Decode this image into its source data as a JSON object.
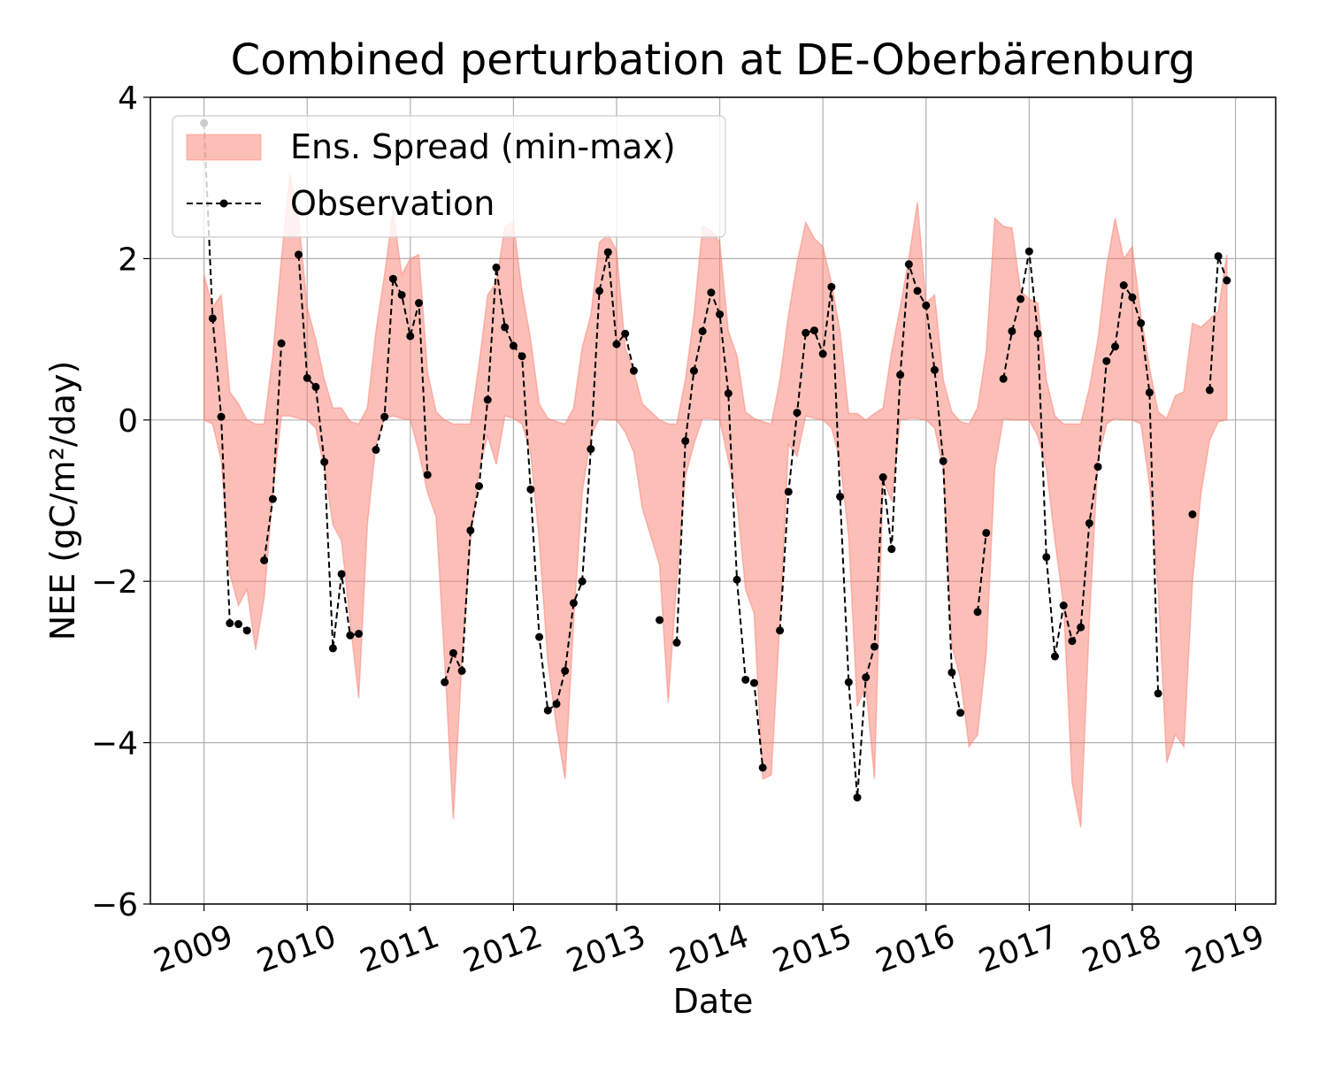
{
  "chart_data": {
    "type": "band-line",
    "title": "Combined perturbation at DE-Oberbärenburg",
    "xlabel": "Date",
    "ylabel": "NEE  (gC/m²/day)",
    "x": [
      "2009-01",
      "2009-02",
      "2009-03",
      "2009-04",
      "2009-05",
      "2009-06",
      "2009-07",
      "2009-08",
      "2009-09",
      "2009-10",
      "2009-11",
      "2009-12",
      "2010-01",
      "2010-02",
      "2010-03",
      "2010-04",
      "2010-05",
      "2010-06",
      "2010-07",
      "2010-08",
      "2010-09",
      "2010-10",
      "2010-11",
      "2010-12",
      "2011-01",
      "2011-02",
      "2011-03",
      "2011-04",
      "2011-05",
      "2011-06",
      "2011-07",
      "2011-08",
      "2011-09",
      "2011-10",
      "2011-11",
      "2011-12",
      "2012-01",
      "2012-02",
      "2012-03",
      "2012-04",
      "2012-05",
      "2012-06",
      "2012-07",
      "2012-08",
      "2012-09",
      "2012-10",
      "2012-11",
      "2012-12",
      "2013-01",
      "2013-02",
      "2013-03",
      "2013-04",
      "2013-05",
      "2013-06",
      "2013-07",
      "2013-08",
      "2013-09",
      "2013-10",
      "2013-11",
      "2013-12",
      "2014-01",
      "2014-02",
      "2014-03",
      "2014-04",
      "2014-05",
      "2014-06",
      "2014-07",
      "2014-08",
      "2014-09",
      "2014-10",
      "2014-11",
      "2014-12",
      "2015-01",
      "2015-02",
      "2015-03",
      "2015-04",
      "2015-05",
      "2015-06",
      "2015-07",
      "2015-08",
      "2015-09",
      "2015-10",
      "2015-11",
      "2015-12",
      "2016-01",
      "2016-02",
      "2016-03",
      "2016-04",
      "2016-05",
      "2016-06",
      "2016-07",
      "2016-08",
      "2016-09",
      "2016-10",
      "2016-11",
      "2016-12",
      "2017-01",
      "2017-02",
      "2017-03",
      "2017-04",
      "2017-05",
      "2017-06",
      "2017-07",
      "2017-08",
      "2017-09",
      "2017-10",
      "2017-11",
      "2017-12",
      "2018-01",
      "2018-02",
      "2018-03",
      "2018-04",
      "2018-05",
      "2018-06",
      "2018-07",
      "2018-08",
      "2018-09",
      "2018-10",
      "2018-11",
      "2018-12"
    ],
    "series": [
      {
        "name": "Ens. Spread (min-max)",
        "color": "#fa8072",
        "opacity": 0.5,
        "upper": [
          1.8,
          1.4,
          1.55,
          0.35,
          0.2,
          0,
          -0.05,
          -0.05,
          0.8,
          2.0,
          3.05,
          2.5,
          1.4,
          1.0,
          0.5,
          0.15,
          0.15,
          -0.02,
          -0.05,
          0.15,
          1.1,
          1.8,
          2.6,
          1.8,
          2.0,
          2.05,
          0.6,
          0.1,
          0,
          -0.05,
          -0.05,
          -0.05,
          0.7,
          1.55,
          1.7,
          2.4,
          2.45,
          1.6,
          1.0,
          0.2,
          0.02,
          -0.02,
          -0.05,
          0.15,
          0.9,
          1.3,
          2.2,
          2.3,
          2.1,
          0.9,
          0.6,
          0.2,
          0.1,
          0,
          -0.05,
          -0.05,
          0.5,
          1.3,
          2.4,
          2.35,
          2.2,
          1.1,
          0.8,
          0.1,
          0.02,
          -0.02,
          -0.05,
          0.5,
          1.3,
          1.95,
          2.45,
          2.25,
          2.15,
          1.7,
          1.1,
          0.08,
          0.08,
          0,
          0.08,
          0.15,
          0.85,
          1.4,
          2.0,
          2.7,
          1.45,
          1.55,
          0.5,
          0.1,
          -0.02,
          -0.05,
          0.15,
          0.85,
          2.5,
          2.4,
          2.38,
          1.6,
          1.5,
          1.45,
          0.5,
          0.05,
          -0.05,
          -0.05,
          -0.05,
          0.4,
          1.0,
          1.9,
          2.5,
          2.0,
          2.15,
          1.3,
          0.65,
          0.1,
          0.02,
          0.3,
          0.35,
          1.2,
          1.15,
          1.25,
          1.35,
          2.05
        ],
        "lower": [
          0,
          -0.05,
          -0.5,
          -1.9,
          -2.3,
          -2.1,
          -2.85,
          -2.2,
          -0.9,
          0.05,
          0.05,
          0.02,
          0,
          -0.1,
          -0.6,
          -1.3,
          -1.5,
          -2.5,
          -3.45,
          -1.3,
          -0.3,
          0.02,
          0.05,
          0.02,
          0,
          -0.4,
          -0.9,
          -1.2,
          -3.0,
          -4.95,
          -3.0,
          -1.5,
          -0.6,
          -0.2,
          -0.55,
          0.05,
          0.02,
          -0.05,
          -0.4,
          -1.5,
          -3.0,
          -3.8,
          -4.45,
          -2.5,
          -0.9,
          -0.2,
          0.02,
          0,
          0,
          -0.15,
          -0.4,
          -1.1,
          -1.45,
          -1.8,
          -3.5,
          -2.0,
          -0.7,
          -0.3,
          0.02,
          0.02,
          0,
          -0.5,
          -1.0,
          -2.1,
          -2.4,
          -4.45,
          -4.4,
          -2.5,
          -0.3,
          -0.45,
          0.05,
          0.02,
          0,
          -0.1,
          -0.5,
          -1.45,
          -3.55,
          -3.3,
          -4.45,
          -0.75,
          -1.0,
          0,
          0.02,
          0.02,
          0,
          -0.1,
          -0.6,
          -2.8,
          -3.2,
          -4.05,
          -3.9,
          -2.9,
          -0.6,
          0.02,
          0,
          0,
          0,
          -0.2,
          -0.6,
          -1.5,
          -2.3,
          -4.5,
          -5.05,
          -2.5,
          -0.5,
          -0.05,
          0.02,
          0,
          0,
          -0.05,
          -0.8,
          -2.1,
          -4.25,
          -3.9,
          -4.05,
          -2.0,
          -0.9,
          -0.25,
          -0.02,
          0
        ]
      },
      {
        "name": "Observation",
        "color": "#000000",
        "values": [
          3.68,
          1.26,
          0.04,
          -2.52,
          -2.53,
          -2.61,
          null,
          -1.74,
          -0.98,
          0.95,
          null,
          2.05,
          0.52,
          0.41,
          -0.52,
          -2.83,
          -1.91,
          -2.67,
          -2.65,
          null,
          -0.37,
          0.04,
          1.75,
          1.55,
          1.04,
          1.45,
          -0.68,
          null,
          -3.25,
          -2.89,
          -3.11,
          -1.37,
          -0.82,
          0.25,
          1.89,
          1.15,
          0.92,
          0.79,
          -0.86,
          -2.69,
          -3.6,
          -3.52,
          -3.11,
          -2.27,
          -2.0,
          -0.36,
          1.6,
          2.08,
          0.94,
          1.07,
          0.61,
          null,
          null,
          -2.48,
          null,
          -2.76,
          -0.26,
          0.61,
          1.1,
          1.58,
          1.31,
          0.33,
          -1.98,
          -3.22,
          -3.26,
          -4.31,
          null,
          -2.61,
          -0.89,
          0.09,
          1.08,
          1.11,
          0.82,
          1.65,
          -0.95,
          -3.25,
          -4.68,
          -3.19,
          -2.81,
          -0.71,
          -1.6,
          0.56,
          1.93,
          1.6,
          1.42,
          0.62,
          -0.51,
          -3.13,
          -3.63,
          null,
          -2.38,
          -1.4,
          null,
          0.51,
          1.1,
          1.5,
          2.09,
          1.07,
          -1.7,
          -2.93,
          -2.3,
          -2.74,
          -2.57,
          -1.28,
          -0.58,
          0.73,
          0.91,
          1.67,
          1.52,
          1.2,
          0.34,
          -3.39,
          null,
          null,
          null,
          -1.17,
          null,
          0.37,
          2.03,
          1.73
        ]
      }
    ],
    "xlim": [
      2008.48,
      2019.39
    ],
    "xticks": [
      2009,
      2010,
      2011,
      2012,
      2013,
      2014,
      2015,
      2016,
      2017,
      2018,
      2019
    ],
    "ylim": [
      -6,
      4
    ],
    "yticks": [
      {
        "value": 4,
        "label": "4"
      },
      {
        "value": 2,
        "label": "2"
      },
      {
        "value": 0,
        "label": "0"
      },
      {
        "value": -2,
        "label": "−2"
      },
      {
        "value": -4,
        "label": "−4"
      },
      {
        "value": -6,
        "label": "−6"
      }
    ],
    "grid": true,
    "legend": "upper left"
  }
}
